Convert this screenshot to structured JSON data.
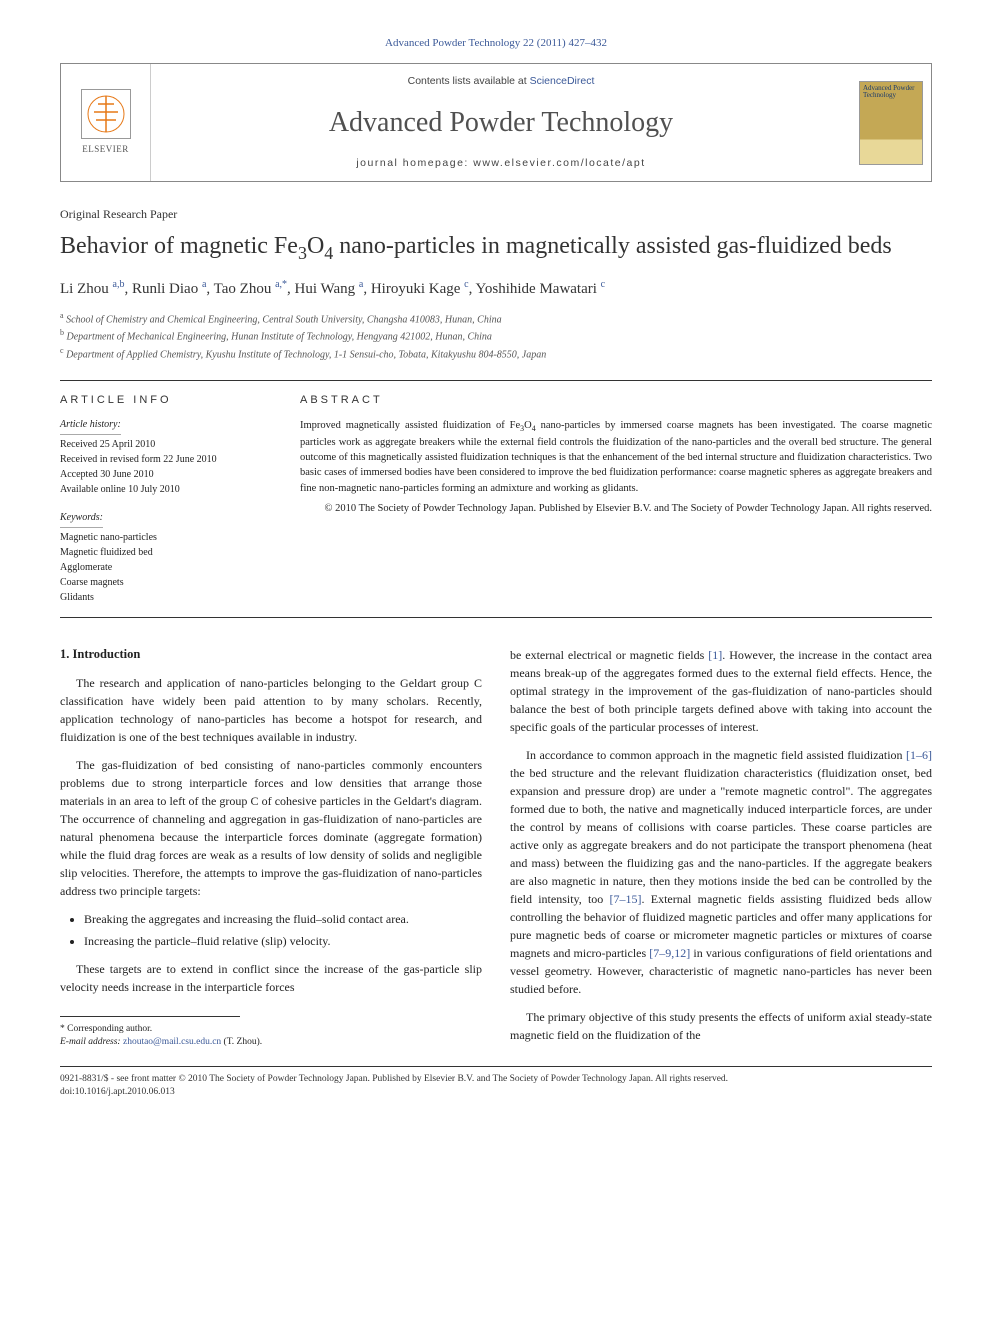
{
  "citation": "Advanced Powder Technology 22 (2011) 427–432",
  "header": {
    "publisher": "ELSEVIER",
    "sd_prefix": "Contents lists available at ",
    "sd_link": "ScienceDirect",
    "journal": "Advanced Powder Technology",
    "homepage_prefix": "journal homepage: ",
    "homepage": "www.elsevier.com/locate/apt",
    "cover_text": "Advanced Powder Technology"
  },
  "paper_type": "Original Research Paper",
  "title_html": "Behavior of magnetic Fe<span class=\"sub\">3</span>O<span class=\"sub\">4</span> nano-particles in magnetically assisted gas-fluidized beds",
  "authors_html": "Li Zhou <span class=\"author-sup\">a,b</span>, Runli Diao <span class=\"author-sup\">a</span>, Tao Zhou <span class=\"author-sup\">a,*</span>, Hui Wang <span class=\"author-sup\">a</span>, Hiroyuki Kage <span class=\"author-sup\">c</span>, Yoshihide Mawatari <span class=\"author-sup\">c</span>",
  "affiliations": [
    "School of Chemistry and Chemical Engineering, Central South University, Changsha 410083, Hunan, China",
    "Department of Mechanical Engineering, Hunan Institute of Technology, Hengyang 421002, Hunan, China",
    "Department of Applied Chemistry, Kyushu Institute of Technology, 1-1 Sensui-cho, Tobata, Kitakyushu 804-8550, Japan"
  ],
  "aff_markers": [
    "a",
    "b",
    "c"
  ],
  "info": {
    "heading_left": "article info",
    "heading_right": "abstract",
    "history_label": "Article history:",
    "history": [
      "Received 25 April 2010",
      "Received in revised form 22 June 2010",
      "Accepted 30 June 2010",
      "Available online 10 July 2010"
    ],
    "keywords_label": "Keywords:",
    "keywords": [
      "Magnetic nano-particles",
      "Magnetic fluidized bed",
      "Agglomerate",
      "Coarse magnets",
      "Glidants"
    ],
    "abstract_html": "Improved magnetically assisted fluidization of Fe<span class=\"sub\">3</span>O<span class=\"sub\">4</span> nano-particles by immersed coarse magnets has been investigated. The coarse magnetic particles work as aggregate breakers while the external field controls the fluidization of the nano-particles and the overall bed structure. The general outcome of this magnetically assisted fluidization techniques is that the enhancement of the bed internal structure and fluidization characteristics. Two basic cases of immersed bodies have been considered to improve the bed fluidization performance: coarse magnetic spheres as aggregate breakers and fine non-magnetic nano-particles forming an admixture and working as glidants.",
    "copyright": "© 2010 The Society of Powder Technology Japan. Published by Elsevier B.V. and The Society of Powder Technology Japan. All rights reserved."
  },
  "section1_heading": "1. Introduction",
  "col_left": {
    "p1": "The research and application of nano-particles belonging to the Geldart group C classification have widely been paid attention to by many scholars. Recently, application technology of nano-particles has become a hotspot for research, and fluidization is one of the best techniques available in industry.",
    "p2": "The gas-fluidization of bed consisting of nano-particles commonly encounters problems due to strong interparticle forces and low densities that arrange those materials in an area to left of the group C of cohesive particles in the Geldart's diagram. The occurrence of channeling and aggregation in gas-fluidization of nano-particles are natural phenomena because the interparticle forces dominate (aggregate formation) while the fluid drag forces are weak as a results of low density of solids and negligible slip velocities. Therefore, the attempts to improve the gas-fluidization of nano-particles address two principle targets:",
    "bullets": [
      "Breaking the aggregates and increasing the fluid–solid contact area.",
      "Increasing the particle–fluid relative (slip) velocity."
    ],
    "p3": "These targets are to extend in conflict since the increase of the gas-particle slip velocity needs increase in the interparticle forces"
  },
  "col_right": {
    "p1_html": "be external electrical or magnetic fields <span class=\"ref-link\">[1]</span>. However, the increase in the contact area means break-up of the aggregates formed dues to the external field effects. Hence, the optimal strategy in the improvement of the gas-fluidization of nano-particles should balance the best of both principle targets defined above with taking into account the specific goals of the particular processes of interest.",
    "p2_html": "In accordance to common approach in the magnetic field assisted fluidization <span class=\"ref-link\">[1–6]</span> the bed structure and the relevant fluidization characteristics (fluidization onset, bed expansion and pressure drop) are under a \"remote magnetic control\". The aggregates formed due to both, the native and magnetically induced interparticle forces, are under the control by means of collisions with coarse particles. These coarse particles are active only as aggregate breakers and do not participate the transport phenomena (heat and mass) between the fluidizing gas and the nano-particles. If the aggregate beakers are also magnetic in nature, then they motions inside the bed can be controlled by the field intensity, too <span class=\"ref-link\">[7–15]</span>. External magnetic fields assisting fluidized beds allow controlling the behavior of fluidized magnetic particles and offer many applications for pure magnetic beds of coarse or micrometer magnetic particles or mixtures of coarse magnets and micro-particles <span class=\"ref-link\">[7–9,12]</span> in various configurations of field orientations and vessel geometry. However, characteristic of magnetic nano-particles has never been studied before.",
    "p3": "The primary objective of this study presents the effects of uniform axial steady-state magnetic field on the fluidization of the"
  },
  "corr": {
    "label": "* Corresponding author.",
    "email_label": "E-mail address:",
    "email": "zhoutao@mail.csu.edu.cn",
    "name": "(T. Zhou)."
  },
  "footer": {
    "line1": "0921-8831/$ - see front matter © 2010 The Society of Powder Technology Japan. Published by Elsevier B.V. and The Society of Powder Technology Japan. All rights reserved.",
    "line2": "doi:10.1016/j.apt.2010.06.013"
  },
  "colors": {
    "link": "#3b5998",
    "elsevier_orange": "#e67817",
    "cover_gold": "#c4a855"
  }
}
